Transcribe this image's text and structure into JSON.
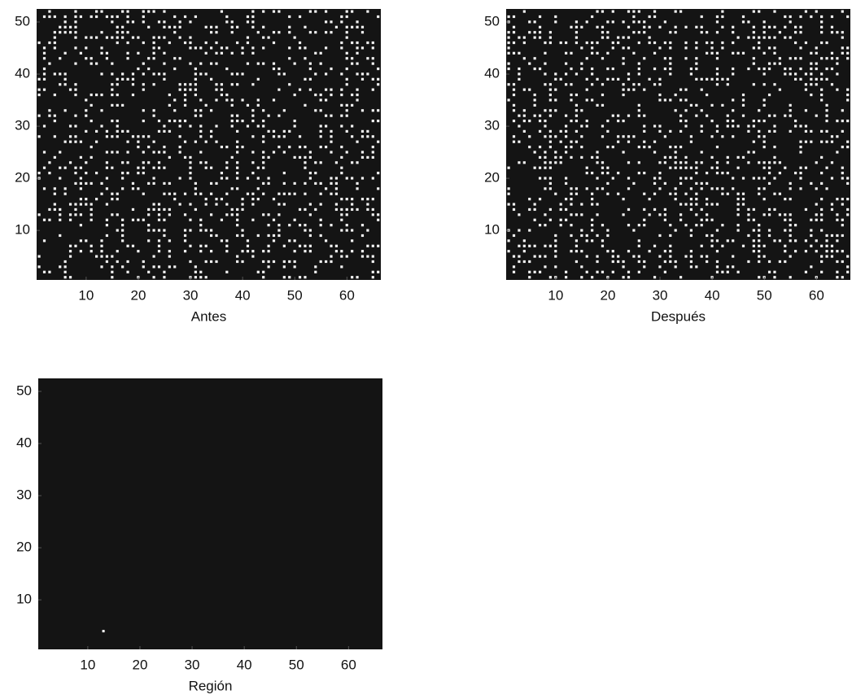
{
  "chart_data": [
    {
      "type": "image",
      "xlabel": "Antes",
      "texture": true,
      "xlim": [
        0.5,
        66.5
      ],
      "ylim": [
        0.5,
        52.5
      ],
      "xticks": [
        10,
        20,
        30,
        40,
        50,
        60
      ],
      "yticks": [
        10,
        20,
        30,
        40,
        50
      ]
    },
    {
      "type": "image",
      "xlabel": "Después",
      "texture": true,
      "xlim": [
        0.5,
        66.5
      ],
      "ylim": [
        0.5,
        52.5
      ],
      "xticks": [
        10,
        20,
        30,
        40,
        50,
        60
      ],
      "yticks": [
        10,
        20,
        30,
        40,
        50
      ]
    },
    {
      "type": "image",
      "xlabel": "Región",
      "texture": false,
      "xlim": [
        0.5,
        66.5
      ],
      "ylim": [
        0.5,
        52.5
      ],
      "xticks": [
        10,
        20,
        30,
        40,
        50,
        60
      ],
      "yticks": [
        10,
        20,
        30,
        40,
        50
      ],
      "points": {
        "x": [
          13
        ],
        "y": [
          4
        ]
      }
    }
  ]
}
